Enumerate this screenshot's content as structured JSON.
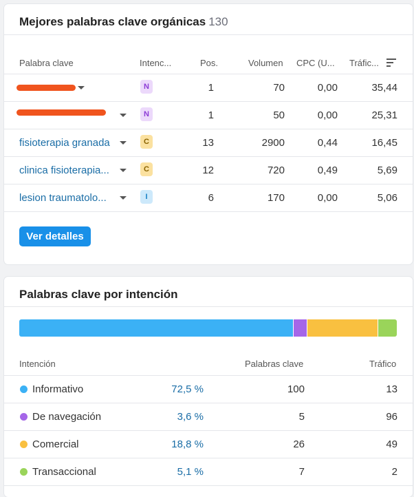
{
  "organic": {
    "title": "Mejores palabras clave orgánicas",
    "count": "130",
    "headers": {
      "keyword": "Palabra clave",
      "intent": "Intenc...",
      "pos": "Pos.",
      "volume": "Volumen",
      "cpc": "CPC (U...",
      "traffic": "Tráfic..."
    },
    "rows": [
      {
        "keyword": "",
        "intent": "N",
        "pos": "1",
        "volume": "70",
        "cpc": "0,00",
        "traffic": "35,44"
      },
      {
        "keyword": "",
        "intent": "N",
        "pos": "1",
        "volume": "50",
        "cpc": "0,00",
        "traffic": "25,31"
      },
      {
        "keyword": "fisioterapia granada",
        "intent": "C",
        "pos": "13",
        "volume": "2900",
        "cpc": "0,44",
        "traffic": "16,45"
      },
      {
        "keyword": "clinica fisioterapia...",
        "intent": "C",
        "pos": "12",
        "volume": "720",
        "cpc": "0,49",
        "traffic": "5,69"
      },
      {
        "keyword": "lesion traumatolo...",
        "intent": "I",
        "pos": "6",
        "volume": "170",
        "cpc": "0,00",
        "traffic": "5,06"
      }
    ],
    "button": "Ver detalles"
  },
  "intent": {
    "title": "Palabras clave por intención",
    "headers": {
      "intent": "Intención",
      "keywords": "Palabras clave",
      "traffic": "Tráfico"
    },
    "colors": {
      "informative": "#3bb1f5",
      "navigational": "#a566e8",
      "commercial": "#f9c040",
      "transactional": "#9ad45a"
    },
    "rows": [
      {
        "name": "Informativo",
        "pct": "72,5 %",
        "share": 72.5,
        "keywords": "100",
        "traffic": "13",
        "color": "#3bb1f5"
      },
      {
        "name": "De navegación",
        "pct": "3,6 %",
        "share": 3.6,
        "keywords": "5",
        "traffic": "96",
        "color": "#a566e8"
      },
      {
        "name": "Comercial",
        "pct": "18,8 %",
        "share": 18.8,
        "keywords": "26",
        "traffic": "49",
        "color": "#f9c040"
      },
      {
        "name": "Transaccional",
        "pct": "5,1 %",
        "share": 5.1,
        "keywords": "7",
        "traffic": "2",
        "color": "#9ad45a"
      }
    ]
  }
}
